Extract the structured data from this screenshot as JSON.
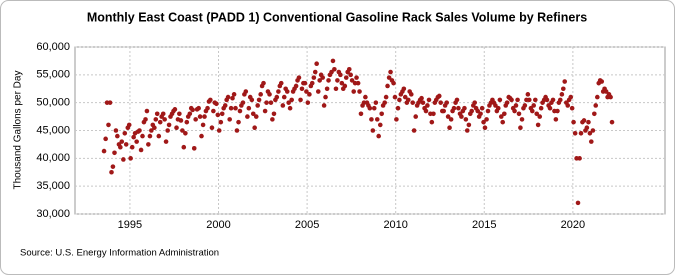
{
  "chart_data": {
    "type": "scatter",
    "title": "Monthly East Coast (PADD 1) Conventional Gasoline Rack Sales Volume by Refiners",
    "ylabel": "Thousand Gallons per Day",
    "source": "Source: U.S. Energy Information Administration",
    "grid": true,
    "xlim": [
      1991.9,
      2025.2
    ],
    "xticks": [
      1995,
      2000,
      2005,
      2010,
      2015,
      2020
    ],
    "ylim": [
      30000,
      60000
    ],
    "yticks": [
      {
        "value": 30000,
        "label": "30,000"
      },
      {
        "value": 35000,
        "label": "35,000"
      },
      {
        "value": 40000,
        "label": "40,000"
      },
      {
        "value": 45000,
        "label": "45,000"
      },
      {
        "value": 50000,
        "label": "50,000"
      },
      {
        "value": 55000,
        "label": "55,000"
      },
      {
        "value": 60000,
        "label": "60,000"
      }
    ],
    "series": [
      {
        "color": "#a01818",
        "x": [
          1993.54,
          1993.63,
          1993.71,
          1993.79,
          1993.88,
          1993.96,
          1994.04,
          1994.13,
          1994.21,
          1994.29,
          1994.38,
          1994.46,
          1994.54,
          1994.63,
          1994.71,
          1994.79,
          1994.88,
          1994.96,
          1995.04,
          1995.13,
          1995.21,
          1995.29,
          1995.38,
          1995.46,
          1995.54,
          1995.63,
          1995.71,
          1995.79,
          1995.88,
          1995.96,
          1996.04,
          1996.13,
          1996.21,
          1996.29,
          1996.38,
          1996.46,
          1996.54,
          1996.63,
          1996.71,
          1996.79,
          1996.88,
          1996.96,
          1997.04,
          1997.13,
          1997.21,
          1997.29,
          1997.38,
          1997.46,
          1997.54,
          1997.63,
          1997.71,
          1997.79,
          1997.88,
          1997.96,
          1998.04,
          1998.13,
          1998.21,
          1998.29,
          1998.38,
          1998.46,
          1998.54,
          1998.63,
          1998.71,
          1998.79,
          1998.88,
          1998.96,
          1999.04,
          1999.13,
          1999.21,
          1999.29,
          1999.38,
          1999.46,
          1999.54,
          1999.63,
          1999.71,
          1999.79,
          1999.88,
          1999.96,
          2000.04,
          2000.13,
          2000.21,
          2000.29,
          2000.38,
          2000.46,
          2000.54,
          2000.63,
          2000.71,
          2000.79,
          2000.88,
          2000.96,
          2001.04,
          2001.13,
          2001.21,
          2001.29,
          2001.38,
          2001.46,
          2001.54,
          2001.63,
          2001.71,
          2001.79,
          2001.88,
          2001.96,
          2002.04,
          2002.13,
          2002.21,
          2002.29,
          2002.38,
          2002.46,
          2002.54,
          2002.63,
          2002.71,
          2002.79,
          2002.88,
          2002.96,
          2003.04,
          2003.13,
          2003.21,
          2003.29,
          2003.38,
          2003.46,
          2003.54,
          2003.63,
          2003.71,
          2003.79,
          2003.88,
          2003.96,
          2004.04,
          2004.13,
          2004.21,
          2004.29,
          2004.38,
          2004.46,
          2004.54,
          2004.63,
          2004.71,
          2004.79,
          2004.88,
          2004.96,
          2005.04,
          2005.13,
          2005.21,
          2005.29,
          2005.38,
          2005.46,
          2005.54,
          2005.63,
          2005.71,
          2005.79,
          2005.88,
          2005.96,
          2006.04,
          2006.13,
          2006.21,
          2006.29,
          2006.38,
          2006.46,
          2006.54,
          2006.63,
          2006.71,
          2006.79,
          2006.88,
          2006.96,
          2007.04,
          2007.13,
          2007.21,
          2007.29,
          2007.38,
          2007.46,
          2007.54,
          2007.63,
          2007.71,
          2007.79,
          2007.88,
          2007.96,
          2008.04,
          2008.13,
          2008.21,
          2008.29,
          2008.38,
          2008.46,
          2008.54,
          2008.63,
          2008.71,
          2008.79,
          2008.88,
          2008.96,
          2009.04,
          2009.13,
          2009.21,
          2009.29,
          2009.38,
          2009.46,
          2009.54,
          2009.63,
          2009.71,
          2009.79,
          2009.88,
          2009.96,
          2010.04,
          2010.13,
          2010.21,
          2010.29,
          2010.38,
          2010.46,
          2010.54,
          2010.63,
          2010.71,
          2010.79,
          2010.88,
          2010.96,
          2011.04,
          2011.13,
          2011.21,
          2011.29,
          2011.38,
          2011.46,
          2011.54,
          2011.63,
          2011.71,
          2011.79,
          2011.88,
          2011.96,
          2012.04,
          2012.13,
          2012.21,
          2012.29,
          2012.38,
          2012.46,
          2012.54,
          2012.63,
          2012.71,
          2012.79,
          2012.88,
          2012.96,
          2013.04,
          2013.13,
          2013.21,
          2013.29,
          2013.38,
          2013.46,
          2013.54,
          2013.63,
          2013.71,
          2013.79,
          2013.88,
          2013.96,
          2014.04,
          2014.13,
          2014.21,
          2014.29,
          2014.38,
          2014.46,
          2014.54,
          2014.63,
          2014.71,
          2014.79,
          2014.88,
          2014.96,
          2015.04,
          2015.13,
          2015.21,
          2015.29,
          2015.38,
          2015.46,
          2015.54,
          2015.63,
          2015.71,
          2015.79,
          2015.88,
          2015.96,
          2016.04,
          2016.13,
          2016.21,
          2016.29,
          2016.38,
          2016.46,
          2016.54,
          2016.63,
          2016.71,
          2016.79,
          2016.88,
          2016.96,
          2017.04,
          2017.13,
          2017.21,
          2017.29,
          2017.38,
          2017.46,
          2017.54,
          2017.63,
          2017.71,
          2017.79,
          2017.88,
          2017.96,
          2018.04,
          2018.13,
          2018.21,
          2018.29,
          2018.38,
          2018.46,
          2018.54,
          2018.63,
          2018.71,
          2018.79,
          2018.88,
          2018.96,
          2019.04,
          2019.13,
          2019.21,
          2019.29,
          2019.38,
          2019.46,
          2019.54,
          2019.63,
          2019.71,
          2019.79,
          2019.88,
          2019.96,
          2020.04,
          2020.13,
          2020.21,
          2020.29,
          2020.38,
          2020.46,
          2020.54,
          2020.63,
          2020.71,
          2020.79,
          2020.88,
          2020.96,
          2021.04,
          2021.13,
          2021.21,
          2021.29,
          2021.38,
          2021.46,
          2021.54,
          2021.63,
          2021.71,
          2021.79,
          2021.88,
          2021.96,
          2022.04,
          2022.13,
          2022.21
        ],
        "values": [
          41300,
          43500,
          50000,
          46000,
          50000,
          37500,
          38500,
          41000,
          45000,
          44000,
          42500,
          42000,
          43000,
          39800,
          44500,
          42500,
          45500,
          46000,
          40000,
          42000,
          43800,
          44500,
          43000,
          44800,
          45000,
          41500,
          44000,
          46500,
          47000,
          48500,
          42500,
          44000,
          45000,
          46000,
          45500,
          47000,
          48000,
          44000,
          46500,
          47500,
          48000,
          47000,
          43000,
          45000,
          46000,
          47500,
          48000,
          48500,
          48800,
          45500,
          47000,
          48000,
          46800,
          45000,
          42000,
          44500,
          46500,
          47500,
          48000,
          49000,
          48700,
          41800,
          47000,
          48800,
          49000,
          47500,
          44000,
          46000,
          47500,
          48500,
          49000,
          50200,
          50500,
          45500,
          48500,
          50000,
          49800,
          47800,
          45000,
          46500,
          48000,
          49000,
          49500,
          50500,
          51000,
          47000,
          49000,
          50800,
          51500,
          49000,
          45000,
          46500,
          48500,
          49500,
          50000,
          51500,
          52000,
          47500,
          49000,
          51000,
          50500,
          48000,
          45500,
          47500,
          49500,
          50500,
          51500,
          53000,
          53500,
          48500,
          50000,
          52000,
          51500,
          50000,
          47000,
          48000,
          50500,
          51000,
          52000,
          53000,
          53500,
          49500,
          51000,
          52500,
          52000,
          50000,
          49000,
          50500,
          52000,
          52500,
          53000,
          54000,
          54500,
          50500,
          52500,
          53500,
          53500,
          52000,
          50000,
          51500,
          53000,
          53500,
          54500,
          55500,
          57000,
          52000,
          54000,
          55000,
          54500,
          49500,
          51000,
          52500,
          54000,
          55000,
          55500,
          57500,
          56000,
          52500,
          54000,
          55500,
          55000,
          53500,
          52500,
          53000,
          54500,
          55500,
          56000,
          55000,
          54000,
          52000,
          53500,
          54500,
          53500,
          52000,
          48000,
          49500,
          50000,
          51000,
          50000,
          49500,
          49000,
          47000,
          45000,
          49000,
          50000,
          47000,
          44000,
          46000,
          48000,
          49500,
          50000,
          51000,
          53000,
          54500,
          55500,
          54000,
          53500,
          51000,
          47000,
          49000,
          50500,
          51500,
          52000,
          52500,
          51000,
          50000,
          50500,
          52000,
          51500,
          50000,
          45000,
          47500,
          49500,
          50000,
          50500,
          50800,
          50000,
          49000,
          48500,
          49500,
          50500,
          48000,
          46500,
          48000,
          50000,
          50500,
          51000,
          51200,
          50000,
          48500,
          48500,
          49500,
          50000,
          47500,
          45500,
          47000,
          48500,
          49000,
          50000,
          50500,
          49000,
          48000,
          47500,
          48500,
          49000,
          47000,
          45000,
          46000,
          48000,
          48500,
          49500,
          50000,
          49000,
          48500,
          47500,
          48000,
          49000,
          46500,
          45500,
          47000,
          48500,
          49500,
          50000,
          50500,
          50000,
          49500,
          48500,
          49000,
          50500,
          47500,
          46500,
          48000,
          49500,
          50000,
          51000,
          50800,
          50500,
          49000,
          48500,
          49500,
          50500,
          48000,
          45500,
          47000,
          49000,
          49500,
          50500,
          51500,
          50500,
          49000,
          48500,
          49500,
          50500,
          48000,
          46000,
          47500,
          49000,
          50000,
          50500,
          51000,
          50500,
          49500,
          49000,
          50000,
          50500,
          48500,
          47000,
          48500,
          50000,
          50500,
          51500,
          52500,
          53800,
          50000,
          49500,
          50500,
          51000,
          49000,
          46500,
          44500,
          40000,
          32000,
          40000,
          44500,
          46500,
          46800,
          45000,
          45500,
          46500,
          44500,
          43000,
          45000,
          48000,
          49500,
          51000,
          53500,
          54000,
          53800,
          52000,
          52500,
          52000,
          51000,
          51500,
          51000,
          46500
        ]
      }
    ]
  }
}
